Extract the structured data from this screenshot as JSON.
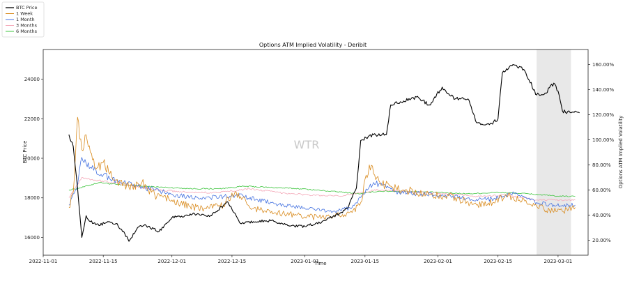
{
  "chart_data": {
    "type": "line",
    "title": "Options ATM Implied Volatility - Deribit",
    "xlabel": "Time",
    "ylabel_left": "BTC Price",
    "ylabel_right": "Options ATM Implied Volatility",
    "watermark": "WTR",
    "x_ticks": [
      "2022-11-01",
      "2022-11-15",
      "2022-12-01",
      "2022-12-15",
      "2023-01-01",
      "2023-01-15",
      "2023-02-01",
      "2023-02-15",
      "2023-03-01"
    ],
    "y_left_ticks": [
      "16000",
      "18000",
      "20000",
      "22000",
      "24000"
    ],
    "y_left_ticks_values": [
      16000,
      18000,
      20000,
      22000,
      24000
    ],
    "y_right_ticks": [
      "20.00%",
      "40.00%",
      "60.00%",
      "80.00%",
      "100.00%",
      "120.00%",
      "140.00%",
      "160.00%"
    ],
    "y_right_ticks_values": [
      20,
      40,
      60,
      80,
      100,
      120,
      140,
      160
    ],
    "ylim_left": [
      15100,
      25500
    ],
    "ylim_right": [
      8,
      172
    ],
    "xlim": [
      "2022-11-01",
      "2023-03-08"
    ],
    "shaded_region": [
      "2023-02-24",
      "2023-03-04"
    ],
    "legend_position": "top-left",
    "colors": {
      "btc": "#000000",
      "week": "#d98b1e",
      "month": "#4472e0",
      "three_months": "#f4a8b8",
      "six_months": "#3cc43c",
      "shade": "#e8e8e8"
    },
    "legend": [
      {
        "label": "BTC Price",
        "color": "#000000"
      },
      {
        "label": "1 Week",
        "color": "#d98b1e"
      },
      {
        "label": "1 Month",
        "color": "#4472e0"
      },
      {
        "label": "3 Months",
        "color": "#f4a8b8"
      },
      {
        "label": "6 Months",
        "color": "#3cc43c"
      }
    ],
    "series": [
      {
        "key": "btc",
        "axis": "left",
        "x": [
          "2022-11-07",
          "2022-11-08",
          "2022-11-09",
          "2022-11-10",
          "2022-11-11",
          "2022-11-12",
          "2022-11-14",
          "2022-11-16",
          "2022-11-18",
          "2022-11-20",
          "2022-11-21",
          "2022-11-23",
          "2022-11-25",
          "2022-11-28",
          "2022-12-01",
          "2022-12-04",
          "2022-12-07",
          "2022-12-10",
          "2022-12-14",
          "2022-12-17",
          "2022-12-20",
          "2022-12-24",
          "2022-12-28",
          "2023-01-01",
          "2023-01-05",
          "2023-01-09",
          "2023-01-11",
          "2023-01-13",
          "2023-01-14",
          "2023-01-17",
          "2023-01-20",
          "2023-01-21",
          "2023-01-24",
          "2023-01-27",
          "2023-01-30",
          "2023-02-02",
          "2023-02-05",
          "2023-02-08",
          "2023-02-10",
          "2023-02-13",
          "2023-02-15",
          "2023-02-16",
          "2023-02-18",
          "2023-02-21",
          "2023-02-24",
          "2023-02-26",
          "2023-02-28",
          "2023-03-01",
          "2023-03-02",
          "2023-03-04",
          "2023-03-06"
        ],
        "y": [
          21200,
          20600,
          18500,
          16000,
          17100,
          16800,
          16600,
          16800,
          16700,
          16200,
          15800,
          16500,
          16600,
          16300,
          17000,
          17100,
          17200,
          17100,
          17800,
          16700,
          16800,
          16850,
          16600,
          16550,
          16800,
          17200,
          17500,
          18500,
          20900,
          21200,
          21200,
          22700,
          22900,
          23100,
          22700,
          23600,
          23000,
          23000,
          21800,
          21700,
          22000,
          24300,
          24700,
          24500,
          23200,
          23300,
          23800,
          23400,
          22400,
          22300,
          22300
        ]
      },
      {
        "key": "week",
        "axis": "right",
        "x": [
          "2022-11-07",
          "2022-11-08",
          "2022-11-09",
          "2022-11-10",
          "2022-11-11",
          "2022-11-13",
          "2022-11-15",
          "2022-11-18",
          "2022-11-21",
          "2022-11-24",
          "2022-11-27",
          "2022-12-01",
          "2022-12-05",
          "2022-12-09",
          "2022-12-13",
          "2022-12-16",
          "2022-12-20",
          "2022-12-25",
          "2022-12-30",
          "2023-01-04",
          "2023-01-09",
          "2023-01-12",
          "2023-01-14",
          "2023-01-16",
          "2023-01-19",
          "2023-01-24",
          "2023-01-30",
          "2023-02-05",
          "2023-02-10",
          "2023-02-14",
          "2023-02-17",
          "2023-02-20",
          "2023-02-24",
          "2023-02-27",
          "2023-03-02",
          "2023-03-05"
        ],
        "y": [
          46,
          58,
          118,
          92,
          104,
          78,
          82,
          68,
          62,
          66,
          56,
          52,
          47,
          45,
          48,
          58,
          45,
          42,
          40,
          38,
          40,
          42,
          50,
          80,
          64,
          60,
          56,
          54,
          48,
          50,
          56,
          52,
          47,
          44,
          43,
          46
        ]
      },
      {
        "key": "month",
        "axis": "right",
        "x": [
          "2022-11-07",
          "2022-11-09",
          "2022-11-10",
          "2022-11-12",
          "2022-11-15",
          "2022-11-19",
          "2022-11-23",
          "2022-11-27",
          "2022-12-02",
          "2022-12-07",
          "2022-12-12",
          "2022-12-16",
          "2022-12-21",
          "2022-12-27",
          "2023-01-02",
          "2023-01-08",
          "2023-01-12",
          "2023-01-14",
          "2023-01-17",
          "2023-01-23",
          "2023-01-29",
          "2023-02-04",
          "2023-02-09",
          "2023-02-14",
          "2023-02-19",
          "2023-02-24",
          "2023-02-28",
          "2023-03-05"
        ],
        "y": [
          48,
          64,
          86,
          78,
          72,
          66,
          63,
          60,
          56,
          54,
          54,
          56,
          52,
          48,
          45,
          43,
          46,
          54,
          66,
          58,
          57,
          55,
          52,
          53,
          57,
          50,
          48,
          48
        ]
      },
      {
        "key": "three_months",
        "axis": "right",
        "x": [
          "2022-11-07",
          "2022-11-10",
          "2022-11-13",
          "2022-11-17",
          "2022-11-22",
          "2022-11-28",
          "2022-12-05",
          "2022-12-12",
          "2022-12-19",
          "2022-12-26",
          "2023-01-02",
          "2023-01-09",
          "2023-01-14",
          "2023-01-18",
          "2023-01-25",
          "2023-02-02",
          "2023-02-10",
          "2023-02-17",
          "2023-02-24",
          "2023-03-05"
        ],
        "y": [
          54,
          70,
          68,
          66,
          63,
          60,
          58,
          58,
          61,
          58,
          56,
          55,
          58,
          60,
          59,
          57,
          55,
          56,
          52,
          52
        ]
      },
      {
        "key": "six_months",
        "axis": "right",
        "x": [
          "2022-11-07",
          "2022-11-10",
          "2022-11-14",
          "2022-11-19",
          "2022-11-24",
          "2022-11-30",
          "2022-12-06",
          "2022-12-12",
          "2022-12-18",
          "2022-12-24",
          "2022-12-31",
          "2023-01-07",
          "2023-01-14",
          "2023-01-18",
          "2023-01-25",
          "2023-02-01",
          "2023-02-08",
          "2023-02-15",
          "2023-02-22",
          "2023-03-01",
          "2023-03-05"
        ],
        "y": [
          60,
          62,
          66,
          64,
          63,
          62,
          61,
          61,
          63,
          62,
          61,
          59,
          57,
          59,
          59,
          58,
          57,
          58,
          57,
          55,
          55
        ]
      }
    ]
  }
}
